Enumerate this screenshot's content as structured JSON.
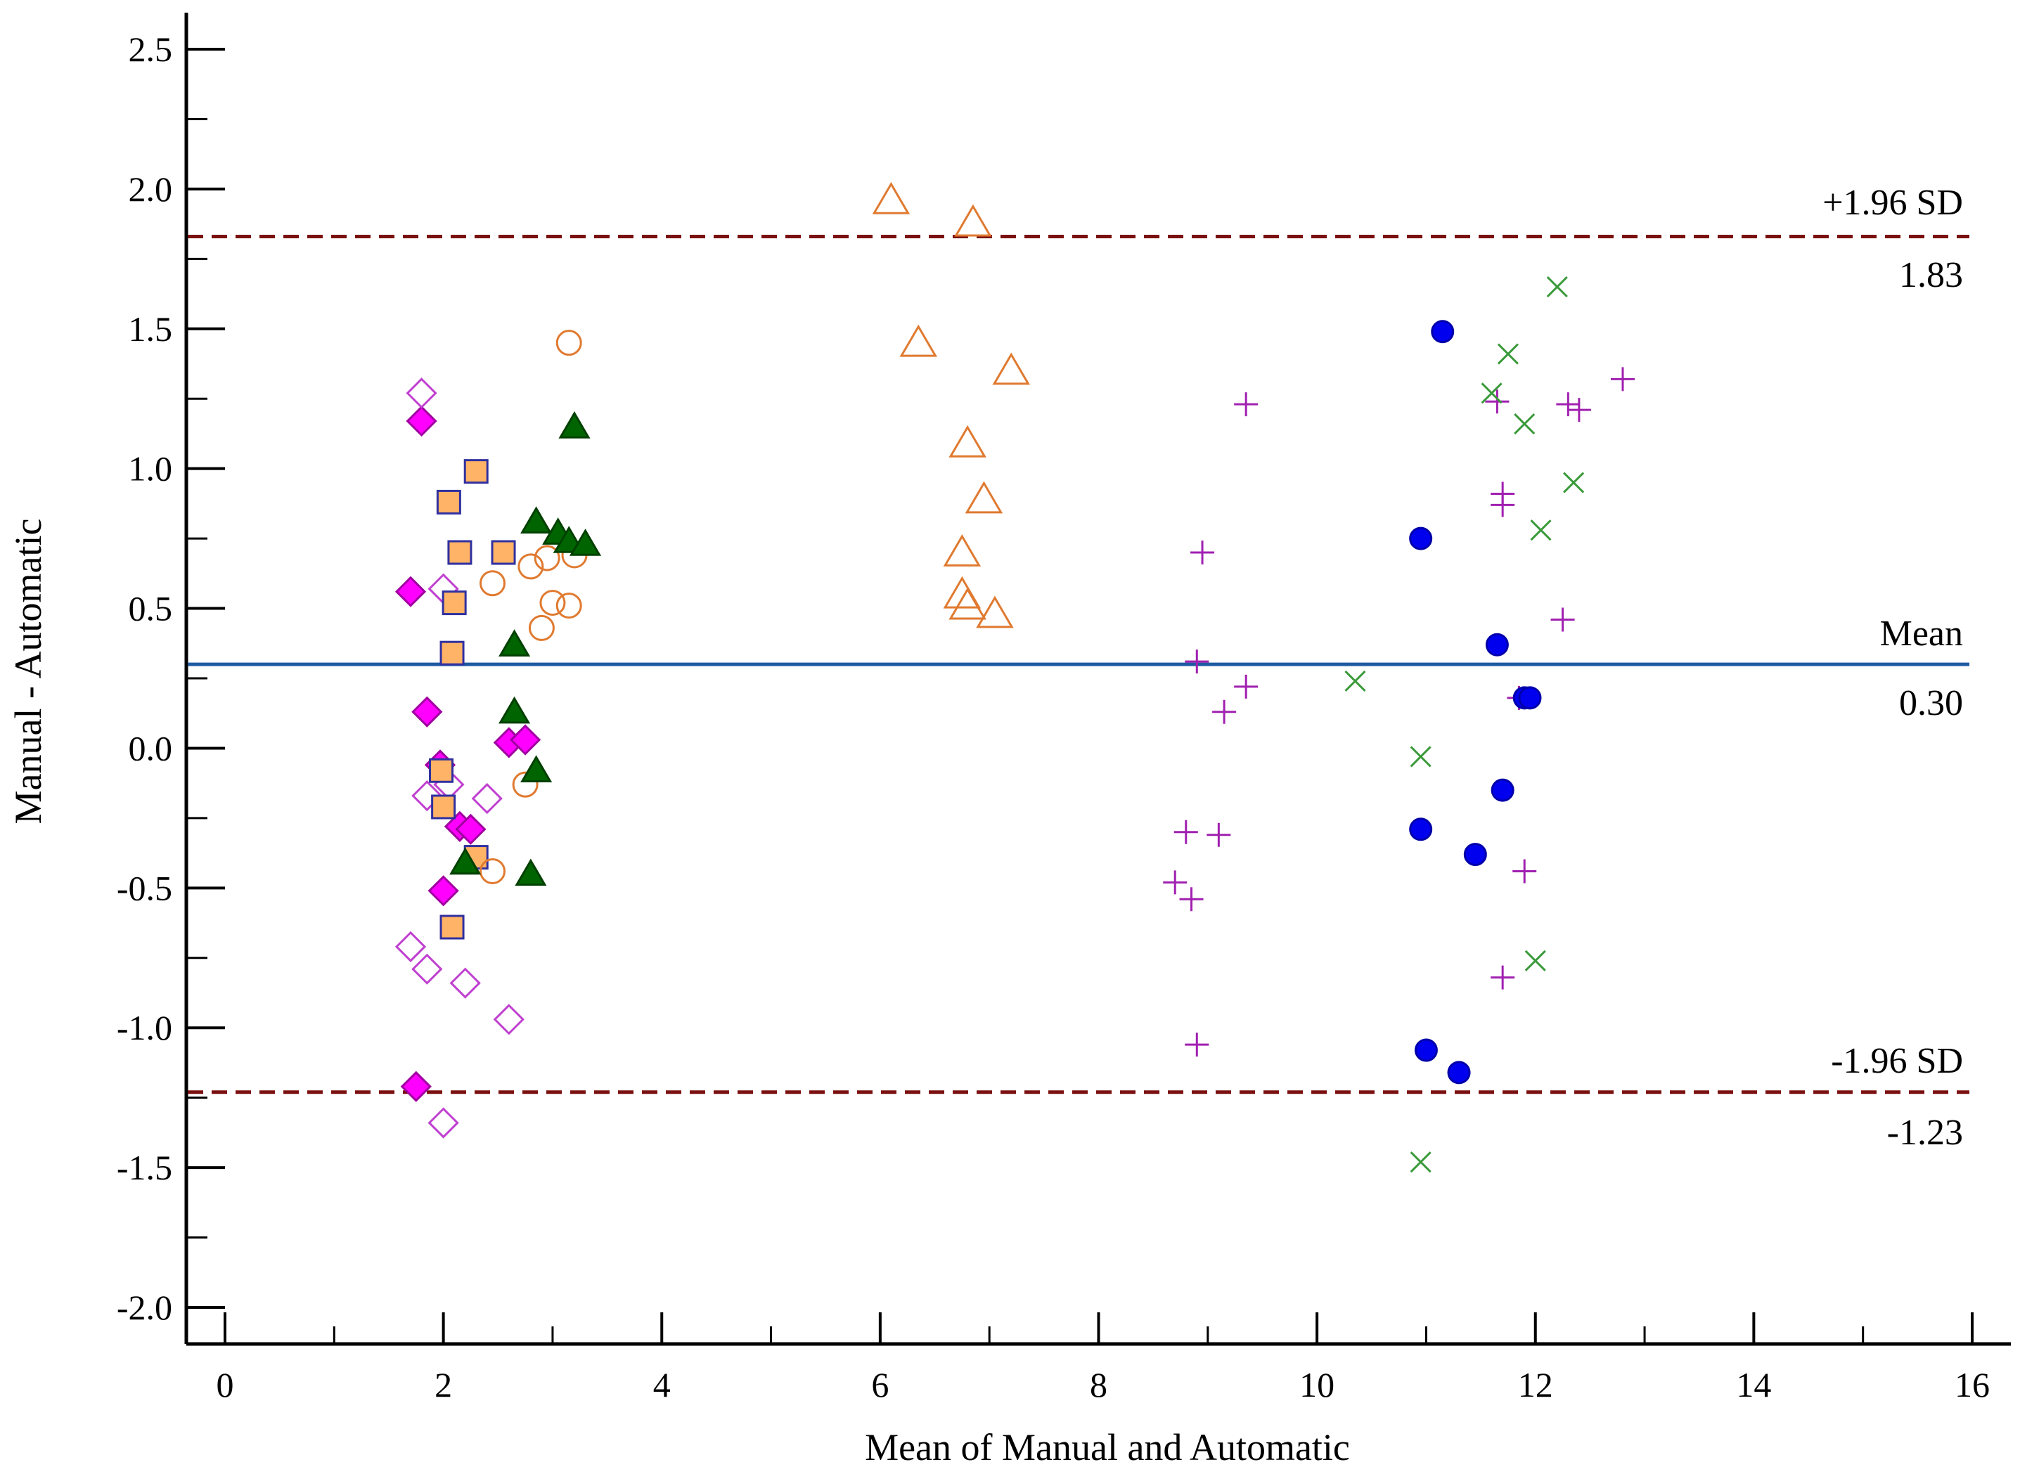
{
  "chart_data": {
    "type": "scatter",
    "title": "",
    "xlabel": "Mean of Manual and Automatic",
    "ylabel": "Manual - Automatic",
    "xlim": [
      0,
      16
    ],
    "ylim": [
      -2.15,
      2.55
    ],
    "x_ticks": [
      0,
      2,
      4,
      6,
      8,
      10,
      12,
      14,
      16
    ],
    "y_ticks": [
      2.5,
      2.0,
      1.5,
      1.0,
      0.5,
      0.0,
      -0.5,
      -1.0,
      -1.5,
      -2.0
    ],
    "x_tick_labels": [
      "0",
      "2",
      "4",
      "6",
      "8",
      "10",
      "12",
      "14",
      "16"
    ],
    "y_tick_labels": [
      "2.5",
      "2.0",
      "1.5",
      "1.0",
      "0.5",
      "0.0",
      "-0.5",
      "-1.0",
      "-1.5",
      "-2.0"
    ],
    "grid": false,
    "reference_lines": [
      {
        "name": "upper-loa",
        "label": "+1.96 SD",
        "value_label": "1.83",
        "value": 1.83,
        "style": "dashed",
        "color": "#7b1010"
      },
      {
        "name": "mean",
        "label": "Mean",
        "value_label": "0.30",
        "value": 0.3,
        "style": "solid",
        "color": "#1f5aa0"
      },
      {
        "name": "lower-loa",
        "label": "-1.96 SD",
        "value_label": "-1.23",
        "value": -1.23,
        "style": "dashed",
        "color": "#7b1010"
      }
    ],
    "series": [
      {
        "name": "filled-diamond",
        "marker": "diamond",
        "fill": "#ff00ff",
        "stroke": "#a000a0",
        "points": [
          [
            1.8,
            1.17
          ],
          [
            1.7,
            0.56
          ],
          [
            1.85,
            0.13
          ],
          [
            1.97,
            -0.06
          ],
          [
            2.15,
            -0.28
          ],
          [
            2.25,
            -0.29
          ],
          [
            2.6,
            0.02
          ],
          [
            2.75,
            0.03
          ],
          [
            2.0,
            -0.51
          ],
          [
            1.75,
            -1.21
          ]
        ]
      },
      {
        "name": "open-diamond",
        "marker": "diamond",
        "fill": "none",
        "stroke": "#c040d0",
        "points": [
          [
            1.8,
            1.27
          ],
          [
            2.0,
            0.57
          ],
          [
            1.85,
            -0.17
          ],
          [
            2.05,
            -0.13
          ],
          [
            2.4,
            -0.18
          ],
          [
            1.7,
            -0.71
          ],
          [
            1.85,
            -0.79
          ],
          [
            2.2,
            -0.84
          ],
          [
            2.6,
            -0.97
          ],
          [
            2.0,
            -1.34
          ]
        ]
      },
      {
        "name": "filled-square",
        "marker": "square",
        "fill": "#ffb366",
        "stroke": "#3030a0",
        "points": [
          [
            2.3,
            0.99
          ],
          [
            2.05,
            0.88
          ],
          [
            2.15,
            0.7
          ],
          [
            2.55,
            0.7
          ],
          [
            2.1,
            0.52
          ],
          [
            2.08,
            0.34
          ],
          [
            1.98,
            -0.08
          ],
          [
            2.0,
            -0.21
          ],
          [
            2.3,
            -0.39
          ],
          [
            2.08,
            -0.64
          ]
        ]
      },
      {
        "name": "open-circle",
        "marker": "circle",
        "fill": "none",
        "stroke": "#e07a30",
        "points": [
          [
            3.15,
            1.45
          ],
          [
            2.45,
            0.59
          ],
          [
            2.8,
            0.65
          ],
          [
            2.95,
            0.68
          ],
          [
            3.2,
            0.69
          ],
          [
            3.0,
            0.52
          ],
          [
            3.15,
            0.51
          ],
          [
            2.9,
            0.43
          ],
          [
            2.75,
            -0.13
          ],
          [
            2.45,
            -0.44
          ]
        ]
      },
      {
        "name": "filled-triangle",
        "marker": "triangle",
        "fill": "#006400",
        "stroke": "#004000",
        "points": [
          [
            3.2,
            1.15
          ],
          [
            2.85,
            0.81
          ],
          [
            3.05,
            0.77
          ],
          [
            3.15,
            0.74
          ],
          [
            3.3,
            0.73
          ],
          [
            2.65,
            0.37
          ],
          [
            2.65,
            0.13
          ],
          [
            2.85,
            -0.08
          ],
          [
            2.2,
            -0.41
          ],
          [
            2.8,
            -0.45
          ]
        ]
      },
      {
        "name": "open-triangle",
        "marker": "triangle",
        "fill": "none",
        "stroke": "#e07a30",
        "points": [
          [
            6.1,
            1.96
          ],
          [
            6.85,
            1.88
          ],
          [
            6.35,
            1.45
          ],
          [
            7.2,
            1.35
          ],
          [
            6.8,
            1.09
          ],
          [
            6.95,
            0.89
          ],
          [
            6.75,
            0.7
          ],
          [
            6.75,
            0.55
          ],
          [
            6.8,
            0.51
          ],
          [
            7.05,
            0.48
          ]
        ]
      },
      {
        "name": "plus",
        "marker": "plus",
        "fill": "none",
        "stroke": "#a020b0",
        "points": [
          [
            9.35,
            1.23
          ],
          [
            8.95,
            0.7
          ],
          [
            8.9,
            0.31
          ],
          [
            9.35,
            0.22
          ],
          [
            9.15,
            0.13
          ],
          [
            8.8,
            -0.3
          ],
          [
            9.1,
            -0.31
          ],
          [
            8.7,
            -0.48
          ],
          [
            8.85,
            -0.54
          ],
          [
            8.9,
            -1.06
          ],
          [
            11.65,
            1.24
          ],
          [
            12.3,
            1.23
          ],
          [
            12.4,
            1.21
          ],
          [
            12.8,
            1.32
          ],
          [
            11.7,
            0.91
          ],
          [
            11.7,
            0.87
          ],
          [
            12.25,
            0.46
          ],
          [
            11.85,
            0.18
          ],
          [
            11.9,
            -0.44
          ],
          [
            11.7,
            -0.82
          ]
        ]
      },
      {
        "name": "cross",
        "marker": "x",
        "fill": "none",
        "stroke": "#3a9a3a",
        "points": [
          [
            12.2,
            1.65
          ],
          [
            11.75,
            1.41
          ],
          [
            11.6,
            1.27
          ],
          [
            11.9,
            1.16
          ],
          [
            12.35,
            0.95
          ],
          [
            12.05,
            0.78
          ],
          [
            10.35,
            0.24
          ],
          [
            10.95,
            -0.03
          ],
          [
            12.0,
            -0.76
          ],
          [
            10.95,
            -1.48
          ]
        ]
      },
      {
        "name": "filled-circle",
        "marker": "circle",
        "fill": "#0000ee",
        "stroke": "#0000aa",
        "points": [
          [
            11.15,
            1.49
          ],
          [
            10.95,
            0.75
          ],
          [
            11.65,
            0.37
          ],
          [
            11.9,
            0.18
          ],
          [
            11.95,
            0.18
          ],
          [
            11.7,
            -0.15
          ],
          [
            10.95,
            -0.29
          ],
          [
            11.45,
            -0.38
          ],
          [
            11.0,
            -1.08
          ],
          [
            11.3,
            -1.16
          ]
        ]
      }
    ]
  }
}
